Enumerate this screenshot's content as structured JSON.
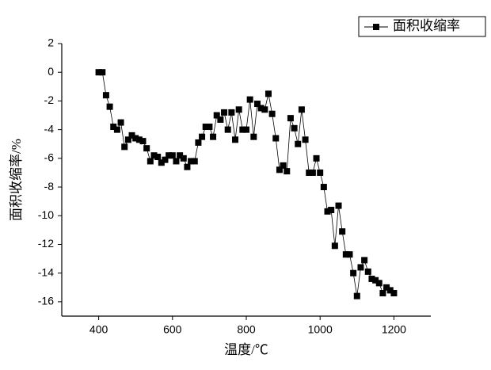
{
  "chart_data": {
    "type": "line",
    "x_label": "温度/℃",
    "y_label": "面积收缩率/%",
    "x": [
      400,
      410,
      420,
      430,
      440,
      450,
      460,
      470,
      480,
      490,
      500,
      510,
      520,
      530,
      540,
      550,
      560,
      570,
      580,
      590,
      600,
      610,
      620,
      630,
      640,
      650,
      660,
      670,
      680,
      690,
      700,
      710,
      720,
      730,
      740,
      750,
      760,
      770,
      780,
      790,
      800,
      810,
      820,
      830,
      840,
      850,
      860,
      870,
      880,
      890,
      900,
      910,
      920,
      930,
      940,
      950,
      960,
      970,
      980,
      990,
      1000,
      1010,
      1020,
      1030,
      1040,
      1050,
      1060,
      1070,
      1080,
      1090,
      1100,
      1110,
      1120,
      1130,
      1140,
      1150,
      1160,
      1170,
      1180,
      1190,
      1200
    ],
    "series": [
      {
        "name": "面积收缩率",
        "color": "#000000",
        "values": [
          0,
          0,
          -1.6,
          -2.4,
          -3.8,
          -4.0,
          -3.5,
          -5.2,
          -4.7,
          -4.4,
          -4.6,
          -4.7,
          -4.8,
          -5.3,
          -6.2,
          -5.8,
          -5.9,
          -6.3,
          -6.1,
          -5.8,
          -5.8,
          -6.2,
          -5.8,
          -6.0,
          -6.6,
          -6.2,
          -6.2,
          -4.9,
          -4.5,
          -3.8,
          -3.8,
          -4.5,
          -3.0,
          -3.3,
          -2.8,
          -4.0,
          -2.8,
          -4.7,
          -2.6,
          -4.0,
          -4.0,
          -1.9,
          -4.5,
          -2.2,
          -2.5,
          -2.6,
          -1.5,
          -2.9,
          -4.6,
          -6.8,
          -6.5,
          -6.9,
          -3.2,
          -3.9,
          -5.0,
          -2.6,
          -4.7,
          -7.0,
          -7.0,
          -6.0,
          -7.0,
          -8.0,
          -9.7,
          -9.6,
          -12.1,
          -9.3,
          -11.1,
          -12.7,
          -12.7,
          -14.0,
          -15.6,
          -13.6,
          -13.1,
          -13.9,
          -14.4,
          -14.5,
          -14.7,
          -15.4,
          -15.0,
          -15.2,
          -15.4
        ]
      }
    ],
    "xlim": [
      300,
      1300
    ],
    "xticks": [
      400,
      600,
      800,
      1000,
      1200
    ],
    "ylim": [
      -17,
      2
    ],
    "yticks": [
      2,
      0,
      -2,
      -4,
      -6,
      -8,
      -10,
      -12,
      -14,
      -16
    ],
    "legend": "top-right",
    "grid": false
  }
}
